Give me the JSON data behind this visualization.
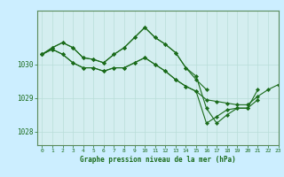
{
  "title": "Graphe pression niveau de la mer (hPa)",
  "bg_color": "#cceeff",
  "plot_bg_color": "#d4eef0",
  "line_color": "#1a6b1a",
  "marker_color": "#1a6b1a",
  "xlim": [
    -0.5,
    23
  ],
  "ylim": [
    1027.6,
    1031.6
  ],
  "yticks": [
    1028,
    1029,
    1030
  ],
  "xticks": [
    0,
    1,
    2,
    3,
    4,
    5,
    6,
    7,
    8,
    9,
    10,
    11,
    12,
    13,
    14,
    15,
    16,
    17,
    18,
    19,
    20,
    21,
    22,
    23
  ],
  "series": [
    [
      1030.3,
      1030.5,
      1030.65,
      1030.5,
      1030.2,
      1030.15,
      1030.05,
      1030.3,
      1030.5,
      1030.8,
      1031.1,
      1030.8,
      1030.6,
      1030.35,
      1029.9,
      1029.65,
      1028.7,
      1028.25,
      1028.5,
      1028.7,
      1028.7,
      1029.25,
      null,
      null
    ],
    [
      1030.3,
      1030.5,
      1030.65,
      1030.5,
      1030.2,
      1030.15,
      1030.05,
      1030.3,
      1030.5,
      1030.8,
      1031.1,
      1030.8,
      1030.6,
      1030.35,
      1029.9,
      1029.55,
      1029.25,
      null,
      null,
      null,
      null,
      null,
      null,
      null
    ],
    [
      1030.3,
      1030.45,
      1030.3,
      1030.05,
      1029.9,
      1029.9,
      1029.8,
      1029.9,
      1029.9,
      1030.05,
      1030.2,
      1030.0,
      1029.8,
      1029.55,
      1029.35,
      1029.2,
      1028.95,
      1028.9,
      1028.85,
      1028.8,
      1028.8,
      1029.05,
      1029.25,
      1029.4
    ],
    [
      1030.3,
      1030.45,
      1030.3,
      1030.05,
      1029.9,
      1029.9,
      1029.8,
      1029.9,
      1029.9,
      1030.05,
      1030.2,
      1030.0,
      1029.8,
      1029.55,
      1029.35,
      1029.2,
      1028.25,
      1028.45,
      1028.65,
      1028.7,
      1028.7,
      1028.95,
      null,
      null
    ]
  ]
}
